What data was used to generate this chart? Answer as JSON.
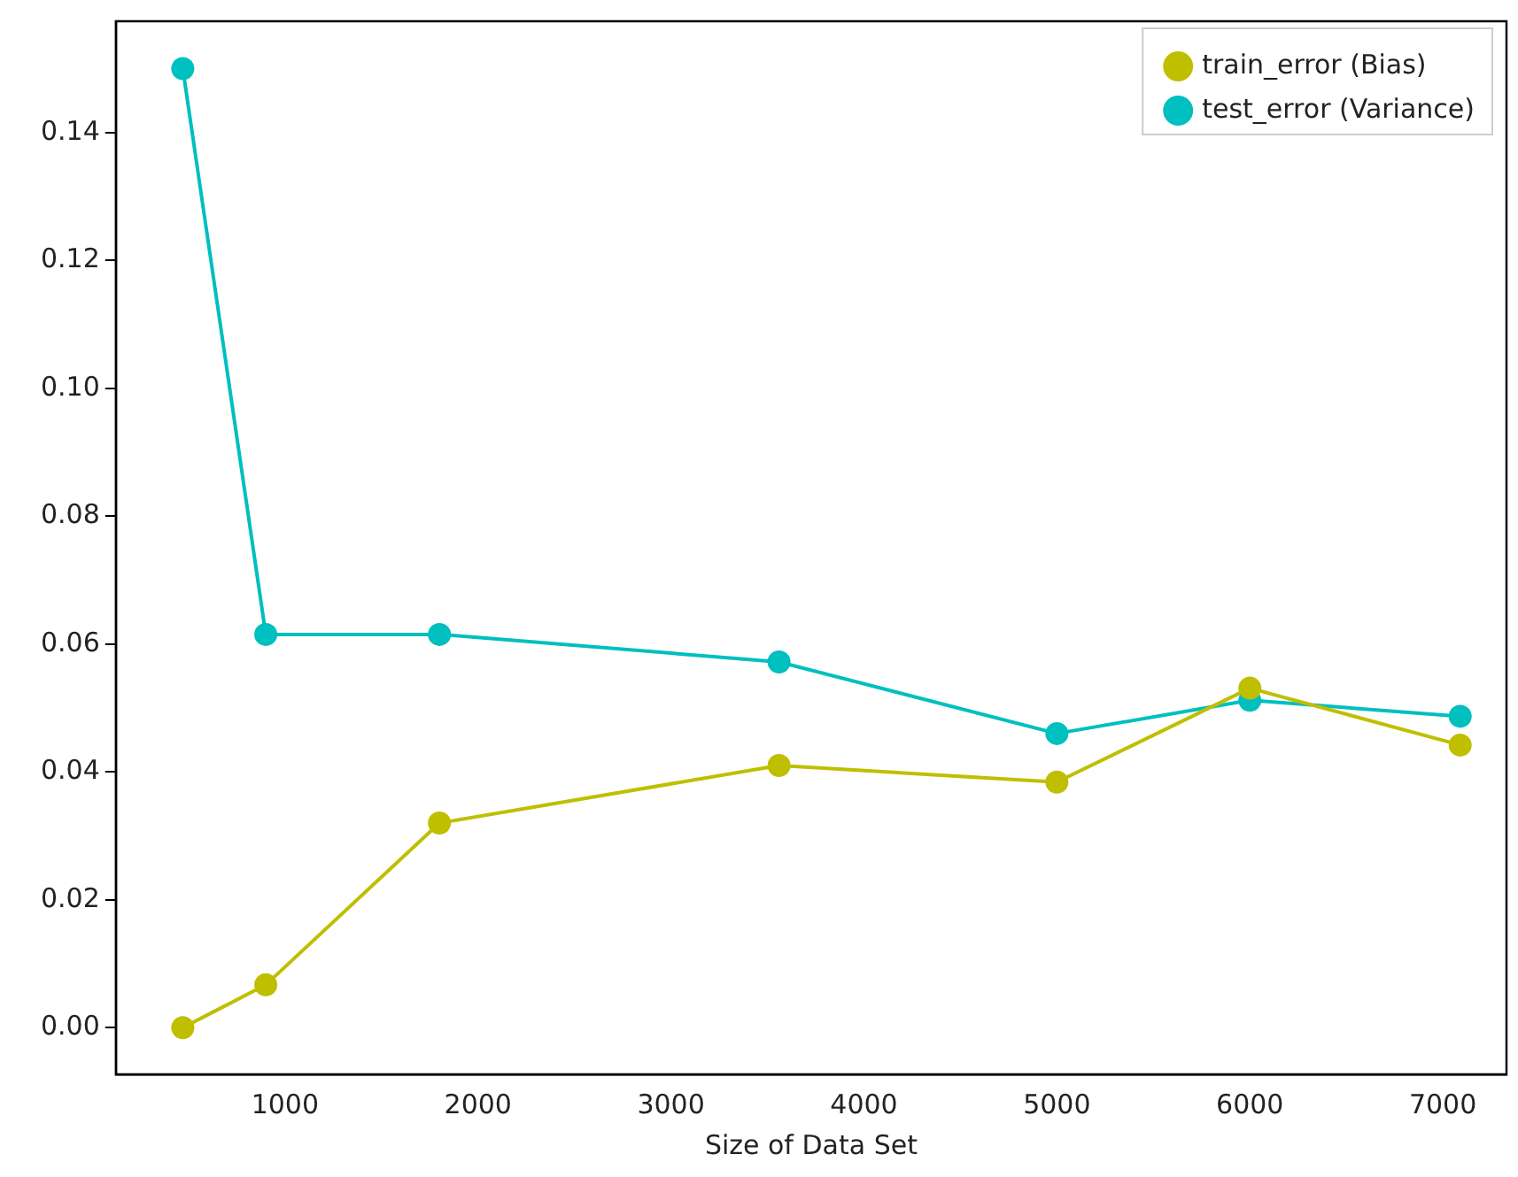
{
  "chart_data": {
    "type": "line",
    "xlabel": "Size of Data Set",
    "x": [
      470,
      900,
      1800,
      3560,
      5000,
      6000,
      7090
    ],
    "series": [
      {
        "name": "train_error (Bias)",
        "color": "#bfbf00",
        "values": [
          0.0,
          0.0067,
          0.032,
          0.041,
          0.0384,
          0.0531,
          0.0442
        ]
      },
      {
        "name": "test_error (Variance)",
        "color": "#00bfbf",
        "values": [
          0.15,
          0.0615,
          0.0615,
          0.0572,
          0.046,
          0.0512,
          0.0487
        ]
      }
    ],
    "xlim": [
      123,
      7330
    ],
    "xticks": [
      1000,
      2000,
      3000,
      4000,
      5000,
      6000,
      7000
    ],
    "ylim": [
      -0.0073,
      0.1574
    ],
    "yticks": [
      {
        "value": 0,
        "label": "0.00"
      },
      {
        "value": 0.02,
        "label": "0.02"
      },
      {
        "value": 0.04,
        "label": "0.04"
      },
      {
        "value": 0.06,
        "label": "0.06"
      },
      {
        "value": 0.08,
        "label": "0.08"
      },
      {
        "value": 0.1,
        "label": "0.10"
      },
      {
        "value": 0.12,
        "label": "0.12"
      },
      {
        "value": 0.14,
        "label": "0.14"
      }
    ],
    "grid": false,
    "legend": "top right",
    "marker": "circle",
    "line_style": "solid"
  }
}
